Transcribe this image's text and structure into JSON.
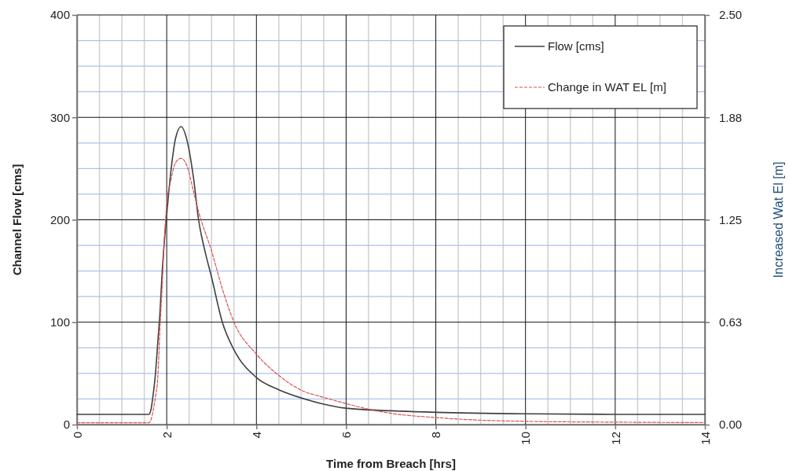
{
  "chart_data": {
    "type": "line",
    "xlabel": "Time from Breach [hrs]",
    "ylabel": "Channel Flow [cms]",
    "y2label": "Increased Wat El [m]",
    "xlim": [
      0,
      14
    ],
    "xticks": [
      0,
      {
        "value": 0.5,
        "label": null
      },
      {
        "value": 1,
        "label": null
      },
      {
        "value": 1.5,
        "label": null
      },
      2,
      {
        "value": 2.5,
        "label": null
      },
      {
        "value": 3,
        "label": null
      },
      {
        "value": 3.5,
        "label": null
      },
      4,
      {
        "value": 4.5,
        "label": null
      },
      {
        "value": 5,
        "label": null
      },
      {
        "value": 5.5,
        "label": null
      },
      6,
      {
        "value": 6.5,
        "label": null
      },
      {
        "value": 7,
        "label": null
      },
      {
        "value": 7.5,
        "label": null
      },
      8,
      {
        "value": 8.5,
        "label": null
      },
      {
        "value": 9,
        "label": null
      },
      {
        "value": 9.5,
        "label": null
      },
      10,
      {
        "value": 10.5,
        "label": null
      },
      {
        "value": 11,
        "label": null
      },
      {
        "value": 11.5,
        "label": null
      },
      12,
      {
        "value": 12.5,
        "label": null
      },
      {
        "value": 13,
        "label": null
      },
      {
        "value": 13.5,
        "label": null
      },
      14
    ],
    "ylim": [
      0,
      400
    ],
    "yticks": [
      0,
      {
        "value": 25,
        "label": null
      },
      {
        "value": 50,
        "label": null
      },
      {
        "value": 75,
        "label": null
      },
      100,
      {
        "value": 125,
        "label": null
      },
      {
        "value": 150,
        "label": null
      },
      {
        "value": 175,
        "label": null
      },
      200,
      {
        "value": 225,
        "label": null
      },
      {
        "value": 250,
        "label": null
      },
      {
        "value": 275,
        "label": null
      },
      300,
      {
        "value": 325,
        "label": null
      },
      {
        "value": 350,
        "label": null
      },
      {
        "value": 375,
        "label": null
      },
      400
    ],
    "y2lim": [
      0,
      2.5
    ],
    "y2ticks": [
      {
        "value": 0,
        "label": "0.00"
      },
      {
        "value": 0.625,
        "label": "0.63"
      },
      {
        "value": 1.25,
        "label": "1.25"
      },
      {
        "value": 1.875,
        "label": "1.88"
      },
      {
        "value": 2.5,
        "label": "2.50"
      }
    ],
    "grid": true,
    "legend": "top right",
    "series": [
      {
        "name": "Flow [cms]",
        "color": "#404040",
        "line_style": "solid",
        "x": [
          0,
          1.6,
          1.65,
          1.7,
          1.75,
          1.8,
          1.85,
          1.9,
          1.95,
          2.0,
          2.1,
          2.2,
          2.32,
          2.45,
          2.6,
          2.71,
          2.85,
          3.0,
          3.24,
          3.5,
          4,
          4.5,
          5,
          5.5,
          6,
          7,
          8,
          10,
          12,
          14
        ],
        "values": [
          10,
          10,
          15,
          30,
          50,
          80,
          110,
          150,
          180,
          205,
          250,
          280,
          291,
          278,
          240,
          200,
          170,
          144,
          100,
          73,
          46,
          34,
          26,
          20,
          16,
          13.5,
          12,
          10.5,
          10,
          10
        ]
      },
      {
        "name": "Change in WAT EL [m]",
        "color": "#d9534f",
        "line_style": "dashed",
        "axis": "y2",
        "x": [
          0,
          1.6,
          1.65,
          1.7,
          1.75,
          1.8,
          1.85,
          1.9,
          1.95,
          2.0,
          2.1,
          2.2,
          2.32,
          2.45,
          2.6,
          2.71,
          3.0,
          3.25,
          3.5,
          4,
          4.5,
          5,
          5.5,
          6,
          6.5,
          7,
          8,
          9,
          10,
          12,
          14
        ],
        "values": [
          0.011,
          0.011,
          0.03,
          0.09,
          0.17,
          0.28,
          0.59,
          0.85,
          1.15,
          1.34,
          1.5,
          1.6,
          1.625,
          1.58,
          1.42,
          1.3,
          1.06,
          0.82,
          0.625,
          0.43,
          0.3,
          0.21,
          0.166,
          0.128,
          0.094,
          0.069,
          0.043,
          0.027,
          0.02,
          0.015,
          0.012
        ]
      }
    ]
  }
}
